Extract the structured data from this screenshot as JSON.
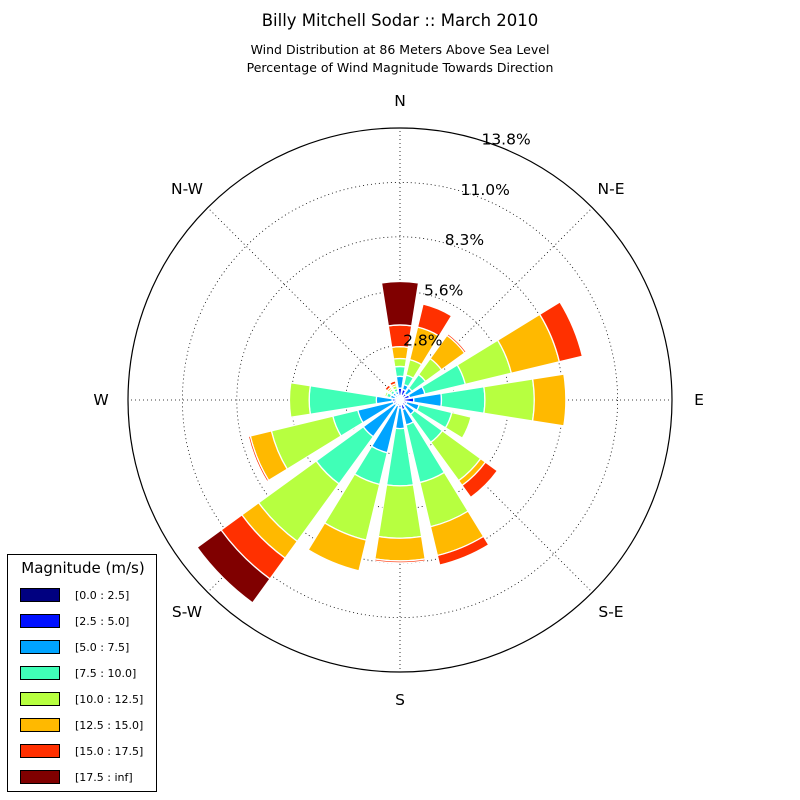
{
  "title": "Billy Mitchell Sodar :: March 2010",
  "subtitle_lines": [
    "Wind Distribution at 86 Meters Above Sea Level",
    "Percentage of Wind Magnitude Towards Direction"
  ],
  "chart_data": {
    "type": "wind_rose",
    "title": "Billy Mitchell Sodar :: March 2010",
    "subtitle": "Wind Distribution at 86 Meters Above Sea Level / Percentage of Wind Magnitude Towards Direction",
    "direction_labels": [
      "N",
      "N-E",
      "E",
      "S-E",
      "S",
      "S-W",
      "W",
      "N-W"
    ],
    "radial_ticks": [
      "2.8%",
      "5.6%",
      "8.3%",
      "11.0%",
      "13.8%"
    ],
    "radial_tick_values": [
      2.755,
      5.51,
      8.265,
      11.02,
      13.775
    ],
    "radial_max": 13.775,
    "grid": true,
    "legend": {
      "title": "Magnitude (m/s)",
      "placement": "bottom-left",
      "bins": [
        "[0.0 : 2.5]",
        "[2.5 : 5.0]",
        "[5.0 : 7.5]",
        "[7.5 : 10.0]",
        "[10.0 : 12.5]",
        "[12.5 : 15.0]",
        "[15.0 : 17.5]",
        "[17.5 : inf]"
      ],
      "colors": [
        "#000080",
        "#0010ff",
        "#00a4ff",
        "#40ffb7",
        "#b7ff40",
        "#ffb900",
        "#ff3000",
        "#800000"
      ]
    },
    "sector_width_deg": 18,
    "directions_deg": [
      0,
      22.5,
      45,
      67.5,
      90,
      112.5,
      135,
      157.5,
      180,
      202.5,
      225,
      247.5,
      270,
      292.5,
      315,
      337.5
    ],
    "cumulative_percent": [
      [
        0.2,
        0.6,
        1.2,
        1.7,
        2.1,
        2.7,
        3.8,
        6.0
      ],
      [
        0.25,
        0.55,
        0.8,
        1.3,
        2.1,
        3.8,
        5.0,
        5.0
      ],
      [
        0.2,
        0.4,
        0.75,
        1.6,
        2.6,
        4.05,
        4.15,
        4.15
      ],
      [
        0.2,
        0.5,
        1.3,
        3.4,
        5.8,
        8.3,
        9.5,
        9.5
      ],
      [
        0.15,
        0.7,
        2.1,
        4.3,
        6.8,
        8.4,
        8.4,
        8.4
      ],
      [
        0.15,
        0.35,
        1.0,
        2.7,
        3.7,
        3.7,
        3.7,
        3.7
      ],
      [
        0.2,
        0.35,
        0.9,
        2.65,
        5.05,
        5.35,
        6.1,
        6.1
      ],
      [
        0.25,
        0.5,
        1.3,
        4.3,
        6.6,
        8.1,
        8.6,
        8.6
      ],
      [
        0.25,
        0.4,
        1.45,
        4.35,
        7.0,
        8.15,
        8.25,
        8.25
      ],
      [
        0.2,
        0.3,
        2.75,
        4.4,
        7.3,
        8.9,
        8.9,
        8.9
      ],
      [
        0.2,
        0.3,
        2.3,
        5.25,
        8.85,
        9.9,
        11.2,
        12.7
      ],
      [
        0.2,
        0.35,
        2.2,
        3.5,
        6.7,
        7.8,
        7.9,
        7.9
      ],
      [
        0.2,
        0.4,
        1.2,
        4.6,
        5.6,
        5.6,
        5.6,
        5.6
      ],
      [
        0.1,
        0.25,
        0.5,
        0.7,
        0.8,
        0.8,
        0.8,
        0.8
      ],
      [
        0.15,
        0.3,
        0.45,
        0.6,
        0.7,
        0.8,
        0.95,
        0.95
      ],
      [
        0.2,
        0.3,
        0.45,
        0.6,
        0.75,
        0.85,
        1.0,
        1.0
      ]
    ]
  }
}
